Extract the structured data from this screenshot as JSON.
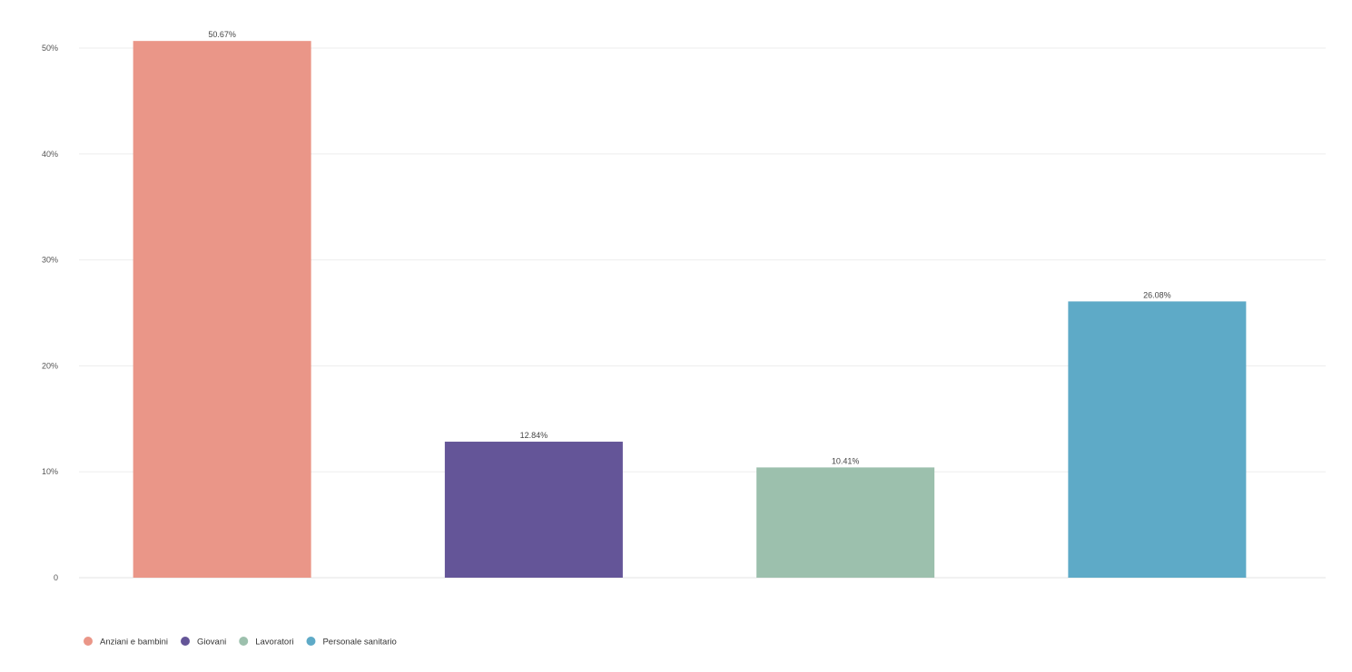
{
  "chart_data": {
    "type": "bar",
    "categories": [
      "Anziani e bambini",
      "Giovani",
      "Lavoratori",
      "Personale sanitario"
    ],
    "values": [
      50.67,
      12.84,
      10.41,
      26.08
    ],
    "value_labels": [
      "50.67%",
      "12.84%",
      "10.41%",
      "26.08%"
    ],
    "colors": [
      "#ea9688",
      "#645598",
      "#9cc0ad",
      "#5eaac7"
    ],
    "yticks": [
      0,
      10,
      20,
      30,
      40,
      50
    ],
    "ytick_labels": [
      "0",
      "10%",
      "20%",
      "30%",
      "40%",
      "50%"
    ],
    "ylim": [
      0,
      50
    ],
    "grid": true,
    "legend_position": "bottom-left",
    "title": "",
    "xlabel": "",
    "ylabel": ""
  }
}
